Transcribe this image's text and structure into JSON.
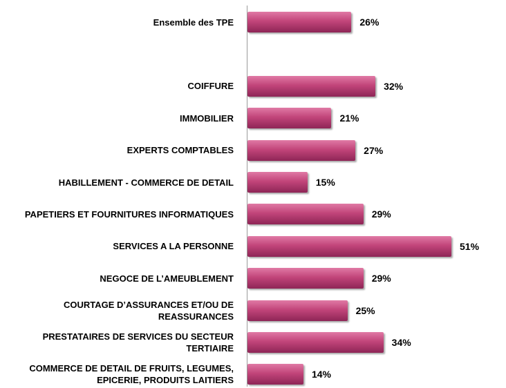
{
  "chart_data": {
    "type": "bar",
    "orientation": "horizontal",
    "categories": [
      "Ensemble des TPE",
      null,
      "COIFFURE",
      "IMMOBILIER",
      "EXPERTS COMPTABLES",
      "HABILLEMENT - COMMERCE DE DETAIL",
      "PAPETIERS ET FOURNITURES INFORMATIQUES",
      "SERVICES A LA PERSONNE",
      "NEGOCE DE L’AMEUBLEMENT",
      "COURTAGE D’ASSURANCES ET/OU DE REASSURANCES",
      "PRESTATAIRES DE SERVICES DU SECTEUR TERTIAIRE",
      "COMMERCE DE DETAIL DE FRUITS, LEGUMES, EPICERIE, PRODUITS LAITIERS"
    ],
    "values": [
      26,
      null,
      32,
      21,
      27,
      15,
      29,
      51,
      29,
      25,
      34,
      14
    ],
    "value_labels": [
      "26%",
      null,
      "32%",
      "21%",
      "27%",
      "15%",
      "29%",
      "51%",
      "29%",
      "25%",
      "34%",
      "14%"
    ],
    "color": "#c2457a"
  }
}
